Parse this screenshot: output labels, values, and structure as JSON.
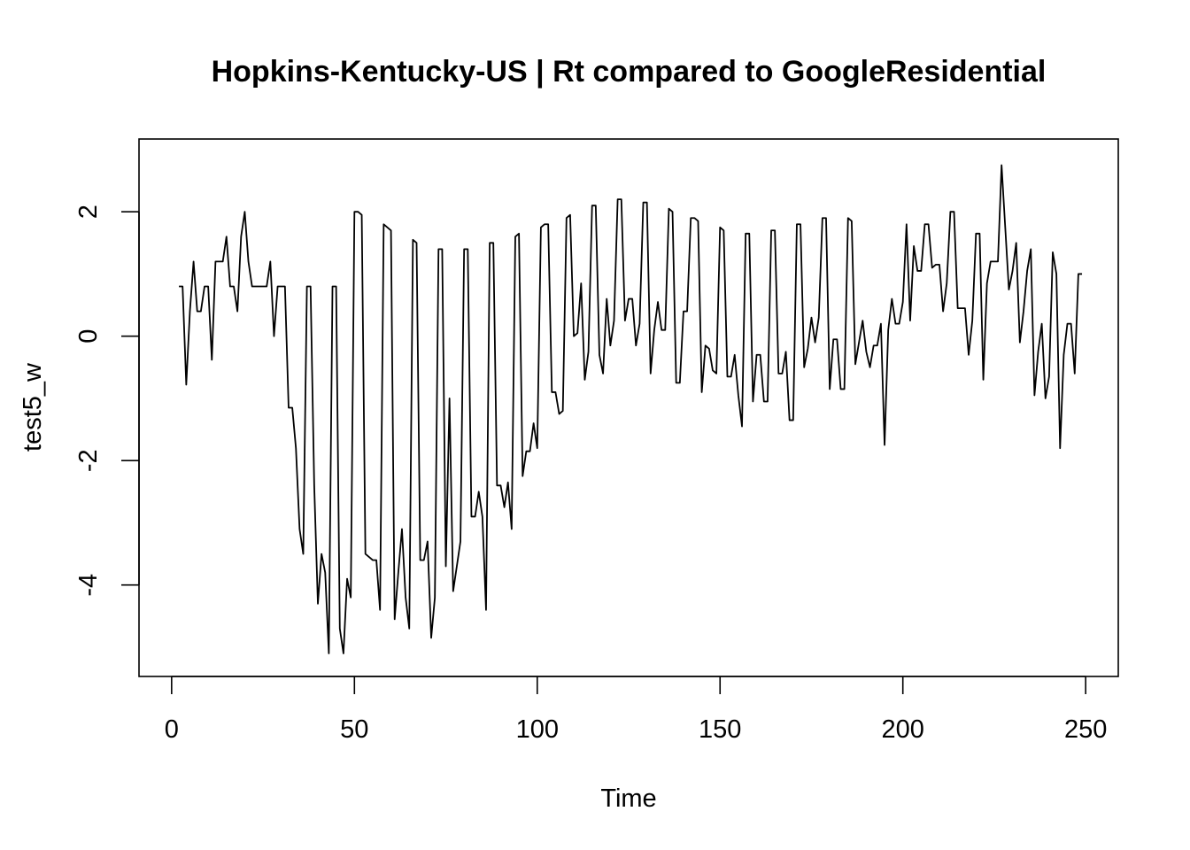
{
  "chart_data": {
    "type": "line",
    "title": "Hopkins-Kentucky-US | Rt compared to GoogleResidential",
    "xlabel": "Time",
    "ylabel": "test5_w",
    "xlim": [
      1,
      248
    ],
    "ylim": [
      -5.15,
      2.85
    ],
    "x_ticks": [
      0,
      50,
      100,
      150,
      200,
      250
    ],
    "y_ticks": [
      -4,
      -2,
      0,
      2
    ],
    "x_tick_labels": [
      "0",
      "50",
      "100",
      "150",
      "200",
      "250"
    ],
    "y_tick_labels": [
      "-4",
      "-2",
      "0",
      "2"
    ],
    "grid": false,
    "series": [
      {
        "color": "#000000",
        "x_start": 2,
        "x_step": 1,
        "values": [
          0.8,
          0.8,
          -0.78,
          0.4,
          1.2,
          0.4,
          0.4,
          0.8,
          0.8,
          -0.38,
          1.2,
          1.2,
          1.2,
          1.6,
          0.8,
          0.8,
          0.4,
          1.6,
          2.0,
          1.2,
          0.8,
          0.8,
          0.8,
          0.8,
          0.8,
          1.2,
          0.0,
          0.8,
          0.8,
          0.8,
          -1.15,
          -1.15,
          -1.8,
          -3.1,
          -3.5,
          0.8,
          0.8,
          -2.4,
          -4.3,
          -3.5,
          -3.8,
          -5.1,
          0.8,
          0.8,
          -4.7,
          -5.1,
          -3.9,
          -4.2,
          2.0,
          2.0,
          1.95,
          -3.5,
          -3.55,
          -3.6,
          -3.6,
          -4.4,
          1.8,
          1.75,
          1.7,
          -4.55,
          -3.8,
          -3.1,
          -4.2,
          -4.7,
          1.55,
          1.5,
          -3.6,
          -3.6,
          -3.3,
          -4.85,
          -4.2,
          1.4,
          1.4,
          -3.7,
          -1.0,
          -4.1,
          -3.7,
          -3.3,
          1.4,
          1.4,
          -2.9,
          -2.9,
          -2.5,
          -2.9,
          -4.4,
          1.5,
          1.5,
          -2.4,
          -2.4,
          -2.75,
          -2.35,
          -3.1,
          1.6,
          1.65,
          -2.25,
          -1.85,
          -1.85,
          -1.4,
          -1.8,
          1.75,
          1.8,
          1.8,
          -0.9,
          -0.9,
          -1.25,
          -1.2,
          1.9,
          1.95,
          0.0,
          0.05,
          0.85,
          -0.7,
          -0.25,
          2.1,
          2.1,
          -0.3,
          -0.6,
          0.6,
          -0.15,
          0.25,
          2.2,
          2.2,
          0.25,
          0.6,
          0.6,
          -0.15,
          0.2,
          2.15,
          2.15,
          -0.6,
          0.1,
          0.55,
          0.1,
          0.1,
          2.05,
          2.0,
          -0.75,
          -0.75,
          0.4,
          0.4,
          1.9,
          1.9,
          1.85,
          -0.9,
          -0.15,
          -0.2,
          -0.55,
          -0.6,
          1.75,
          1.7,
          -0.65,
          -0.65,
          -0.3,
          -0.95,
          -1.45,
          1.65,
          1.65,
          -1.05,
          -0.3,
          -0.3,
          -1.05,
          -1.05,
          1.7,
          1.7,
          -0.6,
          -0.6,
          -0.25,
          -1.35,
          -1.35,
          1.8,
          1.8,
          -0.5,
          -0.2,
          0.3,
          -0.1,
          0.3,
          1.9,
          1.9,
          -0.85,
          -0.05,
          -0.05,
          -0.85,
          -0.85,
          1.9,
          1.85,
          -0.45,
          -0.1,
          0.25,
          -0.25,
          -0.5,
          -0.15,
          -0.15,
          0.2,
          -1.75,
          0.1,
          0.6,
          0.2,
          0.2,
          0.55,
          1.8,
          0.25,
          1.45,
          1.05,
          1.05,
          1.8,
          1.8,
          1.1,
          1.15,
          1.15,
          0.4,
          0.85,
          2.0,
          2.0,
          0.45,
          0.45,
          0.45,
          -0.3,
          0.25,
          1.65,
          1.65,
          -0.7,
          0.85,
          1.2,
          1.2,
          1.2,
          2.75,
          1.75,
          0.75,
          1.05,
          1.5,
          -0.1,
          0.4,
          1.05,
          1.4,
          -0.95,
          -0.25,
          0.2,
          -1.0,
          -0.65,
          1.35,
          1.0,
          -1.8,
          -0.3,
          0.2,
          0.2,
          -0.6,
          1.0,
          1.0
        ]
      }
    ]
  }
}
